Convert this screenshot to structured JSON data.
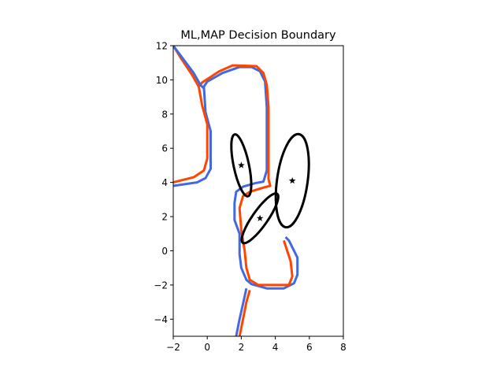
{
  "chart_data": {
    "type": "line",
    "title": "ML,MAP Decision Boundary",
    "xlabel": "",
    "ylabel": "",
    "xlim": [
      -2,
      8
    ],
    "ylim": [
      -5,
      12
    ],
    "grid": false,
    "x_ticks": [
      -2,
      0,
      2,
      4,
      6,
      8
    ],
    "y_ticks": [
      -4,
      -2,
      0,
      2,
      4,
      6,
      8,
      10,
      12
    ],
    "x_tick_labels": [
      "−2",
      "0",
      "2",
      "4",
      "6",
      "8"
    ],
    "y_tick_labels": [
      "−4",
      "−2",
      "0",
      "2",
      "4",
      "6",
      "8",
      "10",
      "12"
    ],
    "series": [
      {
        "color": "#4169e1",
        "style": "boundary",
        "points": [
          [
            -2,
            3.8
          ],
          [
            -0.6,
            4.0
          ],
          [
            -0.1,
            4.25
          ],
          [
            0.2,
            4.8
          ],
          [
            0.2,
            7.0
          ],
          [
            -0.1,
            8.1
          ],
          [
            -0.2,
            9.6
          ],
          [
            0,
            9.9
          ],
          [
            0.9,
            10.4
          ],
          [
            1.9,
            10.75
          ],
          [
            2.6,
            10.75
          ],
          [
            3.1,
            10.5
          ],
          [
            3.4,
            9.9
          ],
          [
            3.5,
            8.4
          ],
          [
            3.5,
            4.7
          ],
          [
            3.3,
            4.05
          ],
          [
            2.8,
            3.95
          ],
          [
            2.1,
            3.75
          ],
          [
            1.7,
            3.45
          ],
          [
            1.6,
            2.8
          ],
          [
            1.6,
            1.8
          ],
          [
            1.9,
            1.0
          ],
          [
            1.9,
            -0.2
          ],
          [
            2.0,
            -1.0
          ],
          [
            2.3,
            -1.7
          ],
          [
            2.6,
            -1.95
          ],
          [
            3.5,
            -2.2
          ],
          [
            4.5,
            -2.2
          ],
          [
            5.1,
            -1.9
          ],
          [
            5.3,
            -1.4
          ],
          [
            5.3,
            -0.4
          ],
          [
            4.8,
            0.6
          ],
          [
            4.6,
            0.8
          ]
        ]
      },
      {
        "color": "#4169e1",
        "style": "boundary",
        "points": [
          [
            1.7,
            -5.0
          ],
          [
            1.9,
            -4.0
          ],
          [
            2.1,
            -3.1
          ],
          [
            2.3,
            -2.2
          ]
        ]
      },
      {
        "color": "#ff4500",
        "style": "boundary",
        "points": [
          [
            -2,
            4.0
          ],
          [
            -0.8,
            4.3
          ],
          [
            -0.2,
            4.7
          ],
          [
            0,
            5.4
          ],
          [
            0,
            7.4
          ],
          [
            -0.3,
            8.5
          ],
          [
            -0.5,
            9.6
          ],
          [
            -0.3,
            9.85
          ],
          [
            0.7,
            10.5
          ],
          [
            1.5,
            10.85
          ],
          [
            2.9,
            10.8
          ],
          [
            3.3,
            10.4
          ],
          [
            3.5,
            9.7
          ],
          [
            3.6,
            8.4
          ],
          [
            3.6,
            4.2
          ],
          [
            3.7,
            3.8
          ],
          [
            3.3,
            3.7
          ],
          [
            2.5,
            3.45
          ],
          [
            2.1,
            3.2
          ],
          [
            1.9,
            2.5
          ],
          [
            2.0,
            1.2
          ],
          [
            2.2,
            0.0
          ],
          [
            2.3,
            -1.0
          ],
          [
            2.5,
            -1.7
          ],
          [
            3.0,
            -2.0
          ],
          [
            4.8,
            -2.0
          ],
          [
            5.0,
            -1.5
          ],
          [
            4.9,
            -0.6
          ],
          [
            4.5,
            0.6
          ]
        ]
      },
      {
        "color": "#ff4500",
        "style": "boundary",
        "points": [
          [
            1.9,
            -5.0
          ],
          [
            2.1,
            -4.0
          ],
          [
            2.3,
            -3.0
          ],
          [
            2.5,
            -2.3
          ]
        ]
      },
      {
        "color": "#ff4500",
        "style": "boundary",
        "points": [
          [
            -2,
            12
          ],
          [
            -1.5,
            11.2
          ],
          [
            -0.9,
            10.3
          ],
          [
            -0.5,
            9.6
          ]
        ]
      },
      {
        "color": "#4169e1",
        "style": "boundary",
        "points": [
          [
            -2,
            12
          ],
          [
            -1.4,
            11.2
          ],
          [
            -0.8,
            10.4
          ],
          [
            -0.4,
            9.7
          ],
          [
            -0.2,
            9.5
          ]
        ]
      }
    ],
    "ellipses": [
      {
        "cx": 2.0,
        "cy": 5.0,
        "rx": 0.45,
        "ry": 1.85,
        "angle": -12
      },
      {
        "cx": 5.0,
        "cy": 4.1,
        "rx": 0.9,
        "ry": 2.75,
        "angle": 8
      },
      {
        "cx": 3.1,
        "cy": 1.9,
        "rx": 0.45,
        "ry": 1.75,
        "angle": 35
      }
    ],
    "centers": [
      [
        2.0,
        5.0
      ],
      [
        5.0,
        4.1
      ],
      [
        3.1,
        1.9
      ]
    ],
    "ellipse_color": "#000000",
    "center_marker": "star"
  }
}
